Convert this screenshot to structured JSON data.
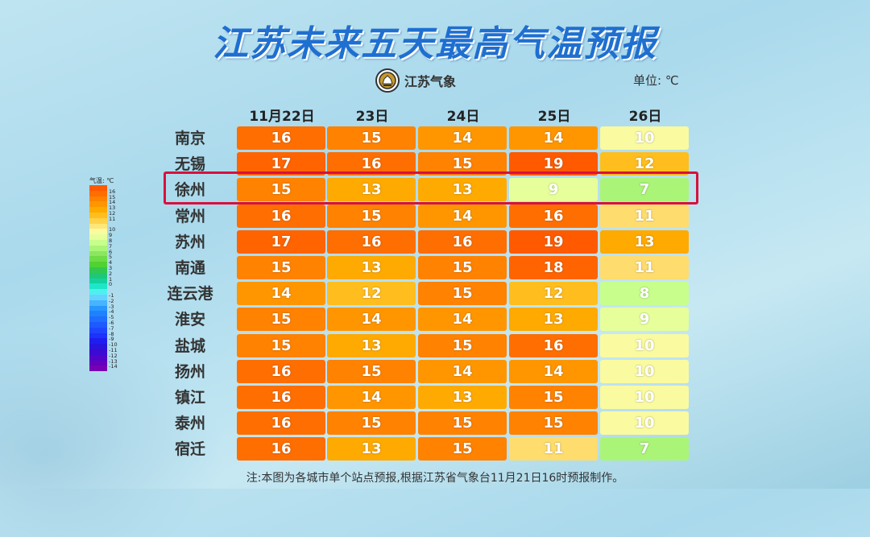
{
  "title": "江苏未来五天最高气温预报",
  "logo_text": "江苏气象",
  "unit": {
    "label": "单位:",
    "value": "℃"
  },
  "dates": [
    "11月22日",
    "23日",
    "24日",
    "25日",
    "26日"
  ],
  "table": {
    "rows": [
      {
        "city": "南京",
        "temps": [
          "16",
          "15",
          "14",
          "14",
          "10"
        ]
      },
      {
        "city": "无锡",
        "temps": [
          "17",
          "16",
          "15",
          "19",
          "12"
        ]
      },
      {
        "city": "徐州",
        "temps": [
          "15",
          "13",
          "13",
          "9",
          "7"
        ]
      },
      {
        "city": "常州",
        "temps": [
          "16",
          "15",
          "14",
          "16",
          "11"
        ]
      },
      {
        "city": "苏州",
        "temps": [
          "17",
          "16",
          "16",
          "19",
          "13"
        ]
      },
      {
        "city": "南通",
        "temps": [
          "15",
          "13",
          "15",
          "18",
          "11"
        ]
      },
      {
        "city": "连云港",
        "temps": [
          "14",
          "12",
          "15",
          "12",
          "8"
        ]
      },
      {
        "city": "淮安",
        "temps": [
          "15",
          "14",
          "14",
          "13",
          "9"
        ]
      },
      {
        "city": "盐城",
        "temps": [
          "15",
          "13",
          "15",
          "16",
          "10"
        ]
      },
      {
        "city": "扬州",
        "temps": [
          "16",
          "15",
          "14",
          "14",
          "10"
        ]
      },
      {
        "city": "镇江",
        "temps": [
          "16",
          "14",
          "13",
          "15",
          "10"
        ]
      },
      {
        "city": "泰州",
        "temps": [
          "16",
          "15",
          "15",
          "15",
          "10"
        ]
      },
      {
        "city": "宿迁",
        "temps": [
          "16",
          "13",
          "15",
          "11",
          "7"
        ]
      }
    ]
  },
  "highlighted_city": "徐州",
  "legend": {
    "title": "气温: ℃",
    "items": [
      {
        "label": "",
        "color": "#ff5a00"
      },
      {
        "label": "16",
        "color": "#ff6e00"
      },
      {
        "label": "15",
        "color": "#ff8200"
      },
      {
        "label": "14",
        "color": "#ff9600"
      },
      {
        "label": "13",
        "color": "#ffaa00"
      },
      {
        "label": "12",
        "color": "#ffbe1e"
      },
      {
        "label": "11",
        "color": "#ffd24b"
      },
      {
        "label": "",
        "color": "#ffe678"
      },
      {
        "label": "10",
        "color": "#fafaa0"
      },
      {
        "label": "9",
        "color": "#e6ff9b"
      },
      {
        "label": "8",
        "color": "#c8ff8c"
      },
      {
        "label": "7",
        "color": "#aaf578"
      },
      {
        "label": "6",
        "color": "#8ce65f"
      },
      {
        "label": "5",
        "color": "#6edc46"
      },
      {
        "label": "4",
        "color": "#50d232"
      },
      {
        "label": "3",
        "color": "#32c850"
      },
      {
        "label": "2",
        "color": "#1ec878"
      },
      {
        "label": "1",
        "color": "#14d2a0"
      },
      {
        "label": "0",
        "color": "#1ee6c8"
      },
      {
        "label": "",
        "color": "#50f0f0"
      },
      {
        "label": "-1",
        "color": "#64d2ff"
      },
      {
        "label": "-2",
        "color": "#46b4ff"
      },
      {
        "label": "-3",
        "color": "#2896ff"
      },
      {
        "label": "-4",
        "color": "#1e82ff"
      },
      {
        "label": "-5",
        "color": "#1e6eff"
      },
      {
        "label": "-6",
        "color": "#1e5aff"
      },
      {
        "label": "-7",
        "color": "#1e46ff"
      },
      {
        "label": "-8",
        "color": "#1e32fa"
      },
      {
        "label": "-9",
        "color": "#1e1ef0"
      },
      {
        "label": "-10",
        "color": "#2814dc"
      },
      {
        "label": "-11",
        "color": "#3c0ad2"
      },
      {
        "label": "-12",
        "color": "#5005c8"
      },
      {
        "label": "-13",
        "color": "#6400be"
      },
      {
        "label": "-14",
        "color": "#7800b4"
      }
    ]
  },
  "footnote": "注:本图为各城市单个站点预报,根据江苏省气象台11月21日16时预报制作。"
}
